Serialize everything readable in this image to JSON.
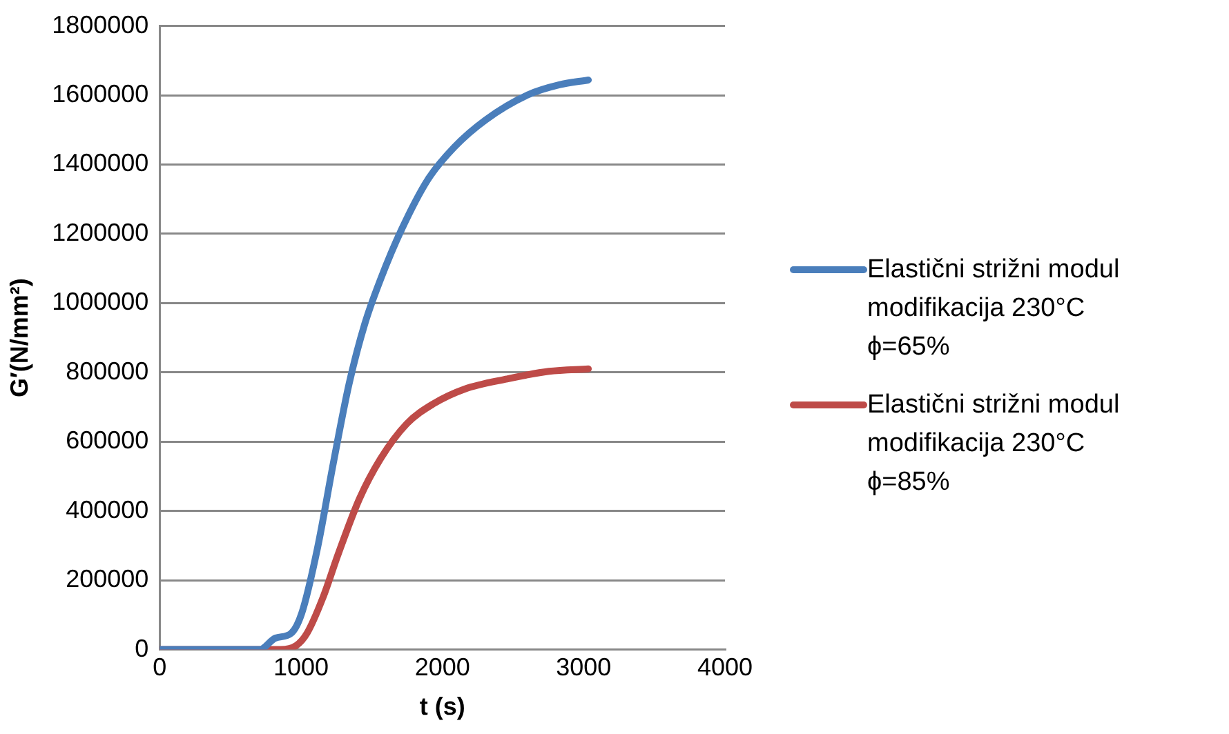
{
  "chart_data": {
    "type": "line",
    "xlabel": "t (s)",
    "ylabel": "G′(N/mm²)",
    "xlim": [
      0,
      4000
    ],
    "xticks": [
      0,
      1000,
      2000,
      3000,
      4000
    ],
    "ylim": [
      0,
      1800000
    ],
    "yticks": [
      0,
      200000,
      400000,
      600000,
      800000,
      1000000,
      1200000,
      1400000,
      1600000,
      1800000
    ],
    "grid": "y",
    "legend": "right",
    "marker": "none",
    "line_style": "solid",
    "series": [
      {
        "name": "Elastični strižni modul modifikacija 230°C ϕ=65%",
        "color": "#4a7ebb",
        "x": [
          0,
          707,
          818,
          930,
          1005,
          1116,
          1228,
          1340,
          1451,
          1563,
          1712,
          1898,
          2084,
          2307,
          2605,
          2828,
          3033
        ],
        "values": [
          0,
          0,
          33000,
          47000,
          105000,
          292000,
          537000,
          767000,
          940000,
          1069000,
          1213000,
          1357000,
          1450000,
          1529000,
          1601000,
          1630000,
          1644000
        ]
      },
      {
        "name": "Elastični strižni modul modifikacija 230°C ϕ=85%",
        "color": "#be4b48",
        "x": [
          0,
          856,
          967,
          1042,
          1153,
          1265,
          1414,
          1563,
          1749,
          1935,
          2158,
          2456,
          2754,
          3033
        ],
        "values": [
          0,
          0,
          12000,
          47000,
          148000,
          278000,
          436000,
          551000,
          652000,
          709000,
          752000,
          781000,
          803000,
          810000
        ]
      }
    ]
  }
}
